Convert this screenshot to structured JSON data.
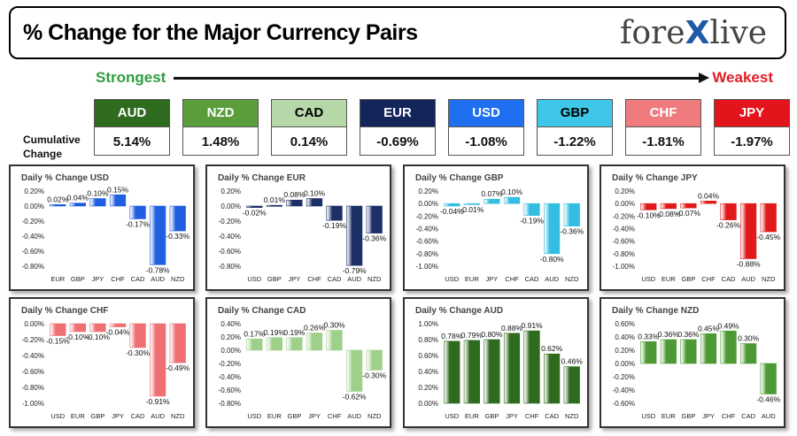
{
  "header": {
    "title": "% Change for the Major Currency Pairs",
    "logo_left": "fore",
    "logo_x": "X",
    "logo_right": "live"
  },
  "scale": {
    "strongest": "Strongest",
    "weakest": "Weakest",
    "cumulative_label_line1": "Cumulative",
    "cumulative_label_line2": "Change"
  },
  "colors": {
    "strong_green": "#2e9e3e",
    "weak_red": "#e31e24"
  },
  "currencies": [
    {
      "code": "AUD",
      "change": "5.14%",
      "bg": "#2f6b1e",
      "fg": "#ffffff"
    },
    {
      "code": "NZD",
      "change": "1.48%",
      "bg": "#5a9d3a",
      "fg": "#ffffff"
    },
    {
      "code": "CAD",
      "change": "0.14%",
      "bg": "#b6d7a8",
      "fg": "#000000"
    },
    {
      "code": "EUR",
      "change": "-0.69%",
      "bg": "#14255c",
      "fg": "#ffffff"
    },
    {
      "code": "USD",
      "change": "-1.08%",
      "bg": "#1f6ff0",
      "fg": "#ffffff"
    },
    {
      "code": "GBP",
      "change": "-1.22%",
      "bg": "#3ec7e8",
      "fg": "#000000"
    },
    {
      "code": "CHF",
      "change": "-1.81%",
      "bg": "#f07b7e",
      "fg": "#ffffff"
    },
    {
      "code": "JPY",
      "change": "-1.97%",
      "bg": "#e3141b",
      "fg": "#ffffff"
    }
  ],
  "chart_data": [
    {
      "type": "bar",
      "title": "Daily % Change USD",
      "categories": [
        "EUR",
        "GBP",
        "JPY",
        "CHF",
        "CAD",
        "AUD",
        "NZD"
      ],
      "values": [
        0.02,
        0.04,
        0.1,
        0.15,
        -0.17,
        -0.78,
        -0.33
      ],
      "labels": [
        "0.02%",
        "0.04%",
        "0.10%",
        "0.15%",
        "-0.17%",
        "-0.78%",
        "-0.33%"
      ],
      "ylim": [
        -0.8,
        0.2
      ],
      "ticks": [
        0.2,
        0,
        -0.2,
        -0.4,
        -0.6,
        -0.8
      ],
      "tick_labels": [
        "0.20%",
        "0.00%",
        "-0.20%",
        "-0.40%",
        "-0.60%",
        "-0.80%"
      ],
      "color": "#1f5fe0"
    },
    {
      "type": "bar",
      "title": "Daily % Change EUR",
      "categories": [
        "USD",
        "GBP",
        "JPY",
        "CHF",
        "CAD",
        "AUD",
        "NZD"
      ],
      "values": [
        -0.02,
        0.01,
        0.08,
        0.1,
        -0.19,
        -0.79,
        -0.36
      ],
      "labels": [
        "-0.02%",
        "0.01%",
        "0.08%",
        "0.10%",
        "-0.19%",
        "-0.79%",
        "-0.36%"
      ],
      "ylim": [
        -0.8,
        0.2
      ],
      "ticks": [
        0.2,
        0,
        -0.2,
        -0.4,
        -0.6,
        -0.8
      ],
      "tick_labels": [
        "0.20%",
        "0.00%",
        "-0.20%",
        "-0.40%",
        "-0.60%",
        "-0.80%"
      ],
      "color": "#1c2f66"
    },
    {
      "type": "bar",
      "title": "Daily % Change GBP",
      "categories": [
        "USD",
        "EUR",
        "JPY",
        "CHF",
        "CAD",
        "AUD",
        "NZD"
      ],
      "values": [
        -0.04,
        -0.01,
        0.07,
        0.1,
        -0.19,
        -0.8,
        -0.36
      ],
      "labels": [
        "-0.04%",
        "-0.01%",
        "0.07%",
        "0.10%",
        "-0.19%",
        "-0.80%",
        "-0.36%"
      ],
      "ylim": [
        -1.0,
        0.2
      ],
      "ticks": [
        0.2,
        0,
        -0.2,
        -0.4,
        -0.6,
        -0.8,
        -1.0
      ],
      "tick_labels": [
        "0.20%",
        "0.00%",
        "-0.20%",
        "-0.40%",
        "-0.60%",
        "-0.80%",
        "-1.00%"
      ],
      "color": "#33bde0"
    },
    {
      "type": "bar",
      "title": "Daily % Change JPY",
      "categories": [
        "USD",
        "EUR",
        "GBP",
        "CHF",
        "CAD",
        "AUD",
        "NZD"
      ],
      "values": [
        -0.1,
        -0.08,
        -0.07,
        0.04,
        -0.26,
        -0.88,
        -0.45
      ],
      "labels": [
        "-0.10%",
        "-0.08%",
        "-0.07%",
        "0.04%",
        "-0.26%",
        "-0.88%",
        "-0.45%"
      ],
      "ylim": [
        -1.0,
        0.2
      ],
      "ticks": [
        0.2,
        0,
        -0.2,
        -0.4,
        -0.6,
        -0.8,
        -1.0
      ],
      "tick_labels": [
        "0.20%",
        "0.00%",
        "-0.20%",
        "-0.40%",
        "-0.60%",
        "-0.80%",
        "-1.00%"
      ],
      "color": "#e01a1a"
    },
    {
      "type": "bar",
      "title": "Daily % Change CHF",
      "categories": [
        "USD",
        "EUR",
        "GBP",
        "JPY",
        "CAD",
        "AUD",
        "NZD"
      ],
      "values": [
        -0.15,
        -0.1,
        -0.1,
        -0.04,
        -0.3,
        -0.91,
        -0.49
      ],
      "labels": [
        "-0.15%",
        "-0.10%",
        "-0.10%",
        "-0.04%",
        "-0.30%",
        "-0.91%",
        "-0.49%"
      ],
      "ylim": [
        -1.0,
        0.0
      ],
      "ticks": [
        0,
        -0.2,
        -0.4,
        -0.6,
        -0.8,
        -1.0
      ],
      "tick_labels": [
        "0.00%",
        "-0.20%",
        "-0.40%",
        "-0.60%",
        "-0.80%",
        "-1.00%"
      ],
      "color": "#ef6f73"
    },
    {
      "type": "bar",
      "title": "Daily % Change CAD",
      "categories": [
        "USD",
        "EUR",
        "GBP",
        "JPY",
        "CHF",
        "AUD",
        "NZD"
      ],
      "values": [
        0.17,
        0.19,
        0.19,
        0.26,
        0.3,
        -0.62,
        -0.3
      ],
      "labels": [
        "0.17%",
        "0.19%",
        "0.19%",
        "0.26%",
        "0.30%",
        "-0.62%",
        "-0.30%"
      ],
      "ylim": [
        -0.8,
        0.4
      ],
      "ticks": [
        0.4,
        0.2,
        0,
        -0.2,
        -0.4,
        -0.6,
        -0.8
      ],
      "tick_labels": [
        "0.40%",
        "0.20%",
        "0.00%",
        "-0.20%",
        "-0.40%",
        "-0.60%",
        "-0.80%"
      ],
      "color": "#9fd08a"
    },
    {
      "type": "bar",
      "title": "Daily % Change AUD",
      "categories": [
        "USD",
        "EUR",
        "GBP",
        "JPY",
        "CHF",
        "CAD",
        "NZD"
      ],
      "values": [
        0.78,
        0.79,
        0.8,
        0.88,
        0.91,
        0.62,
        0.46
      ],
      "labels": [
        "0.78%",
        "0.79%",
        "0.80%",
        "0.88%",
        "0.91%",
        "0.62%",
        "0.46%"
      ],
      "ylim": [
        0,
        1.0
      ],
      "ticks": [
        1.0,
        0.8,
        0.6,
        0.4,
        0.2,
        0
      ],
      "tick_labels": [
        "1.00%",
        "0.80%",
        "0.60%",
        "0.40%",
        "0.20%",
        "0.00%"
      ],
      "color": "#2f6b1e"
    },
    {
      "type": "bar",
      "title": "Daily % Change NZD",
      "categories": [
        "USD",
        "EUR",
        "GBP",
        "JPY",
        "CHF",
        "CAD",
        "AUD"
      ],
      "values": [
        0.33,
        0.36,
        0.36,
        0.45,
        0.49,
        0.3,
        -0.46
      ],
      "labels": [
        "0.33%",
        "0.36%",
        "0.36%",
        "0.45%",
        "0.49%",
        "0.30%",
        "-0.46%"
      ],
      "ylim": [
        -0.6,
        0.6
      ],
      "ticks": [
        0.6,
        0.4,
        0.2,
        0,
        -0.2,
        -0.4,
        -0.6
      ],
      "tick_labels": [
        "0.60%",
        "0.40%",
        "0.20%",
        "0.00%",
        "-0.20%",
        "-0.40%",
        "-0.60%"
      ],
      "color": "#4d9a35"
    }
  ]
}
